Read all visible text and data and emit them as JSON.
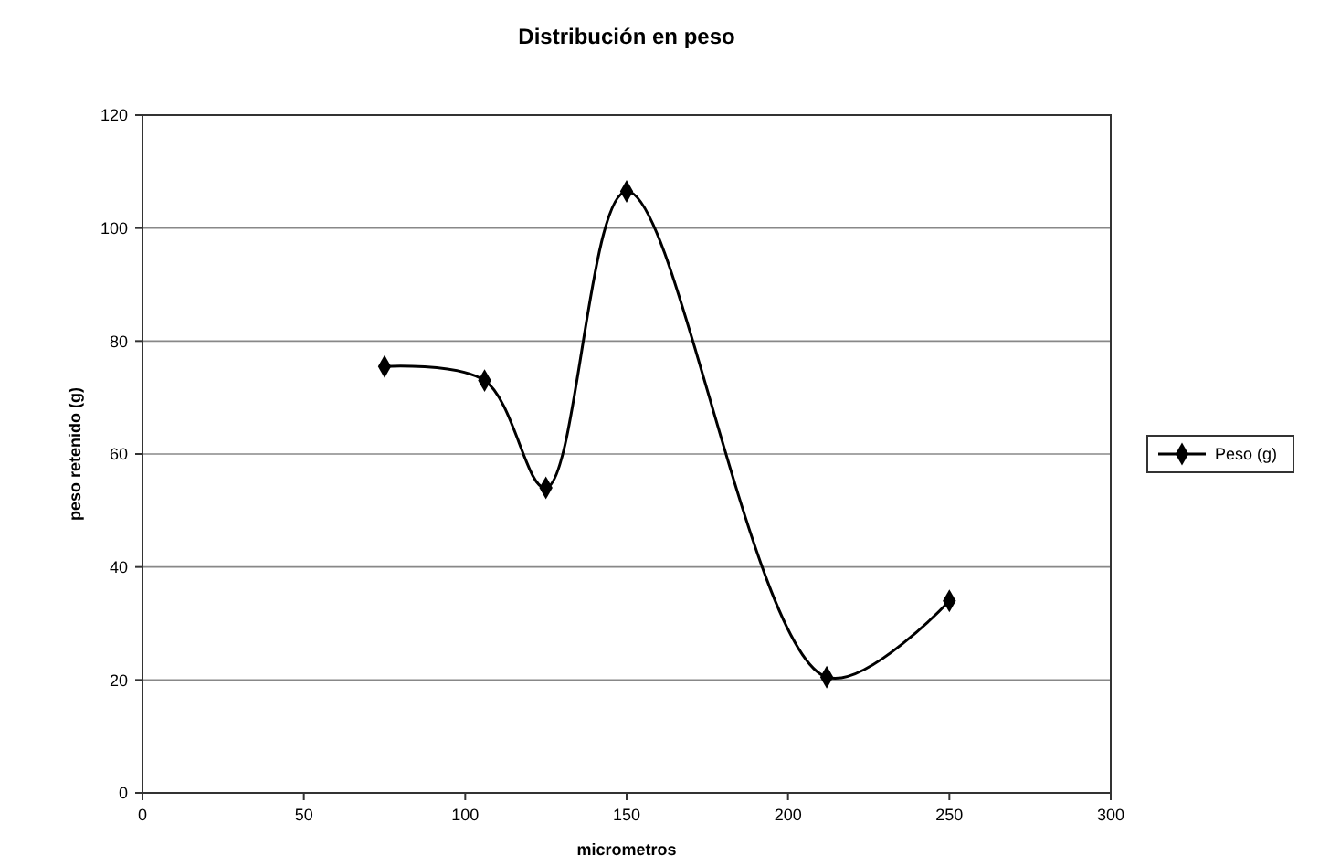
{
  "chart_data": {
    "type": "line",
    "title": "Distribución en peso",
    "xlabel": "micrometros",
    "ylabel": "peso retenido (g)",
    "x": [
      75,
      106,
      125,
      150,
      212,
      250
    ],
    "series": [
      {
        "name": "Peso (g)",
        "color": "#000000",
        "values": [
          75.5,
          73,
          54,
          106.5,
          20.5,
          34
        ]
      }
    ],
    "xlim": [
      0,
      300
    ],
    "xticks": [
      0,
      50,
      100,
      150,
      200,
      250,
      300
    ],
    "ylim": [
      0,
      120
    ],
    "yticks": [
      0,
      20,
      40,
      60,
      80,
      100,
      120
    ],
    "grid": "y",
    "legend": "right",
    "marker": "diamond",
    "line_style": "solid"
  }
}
